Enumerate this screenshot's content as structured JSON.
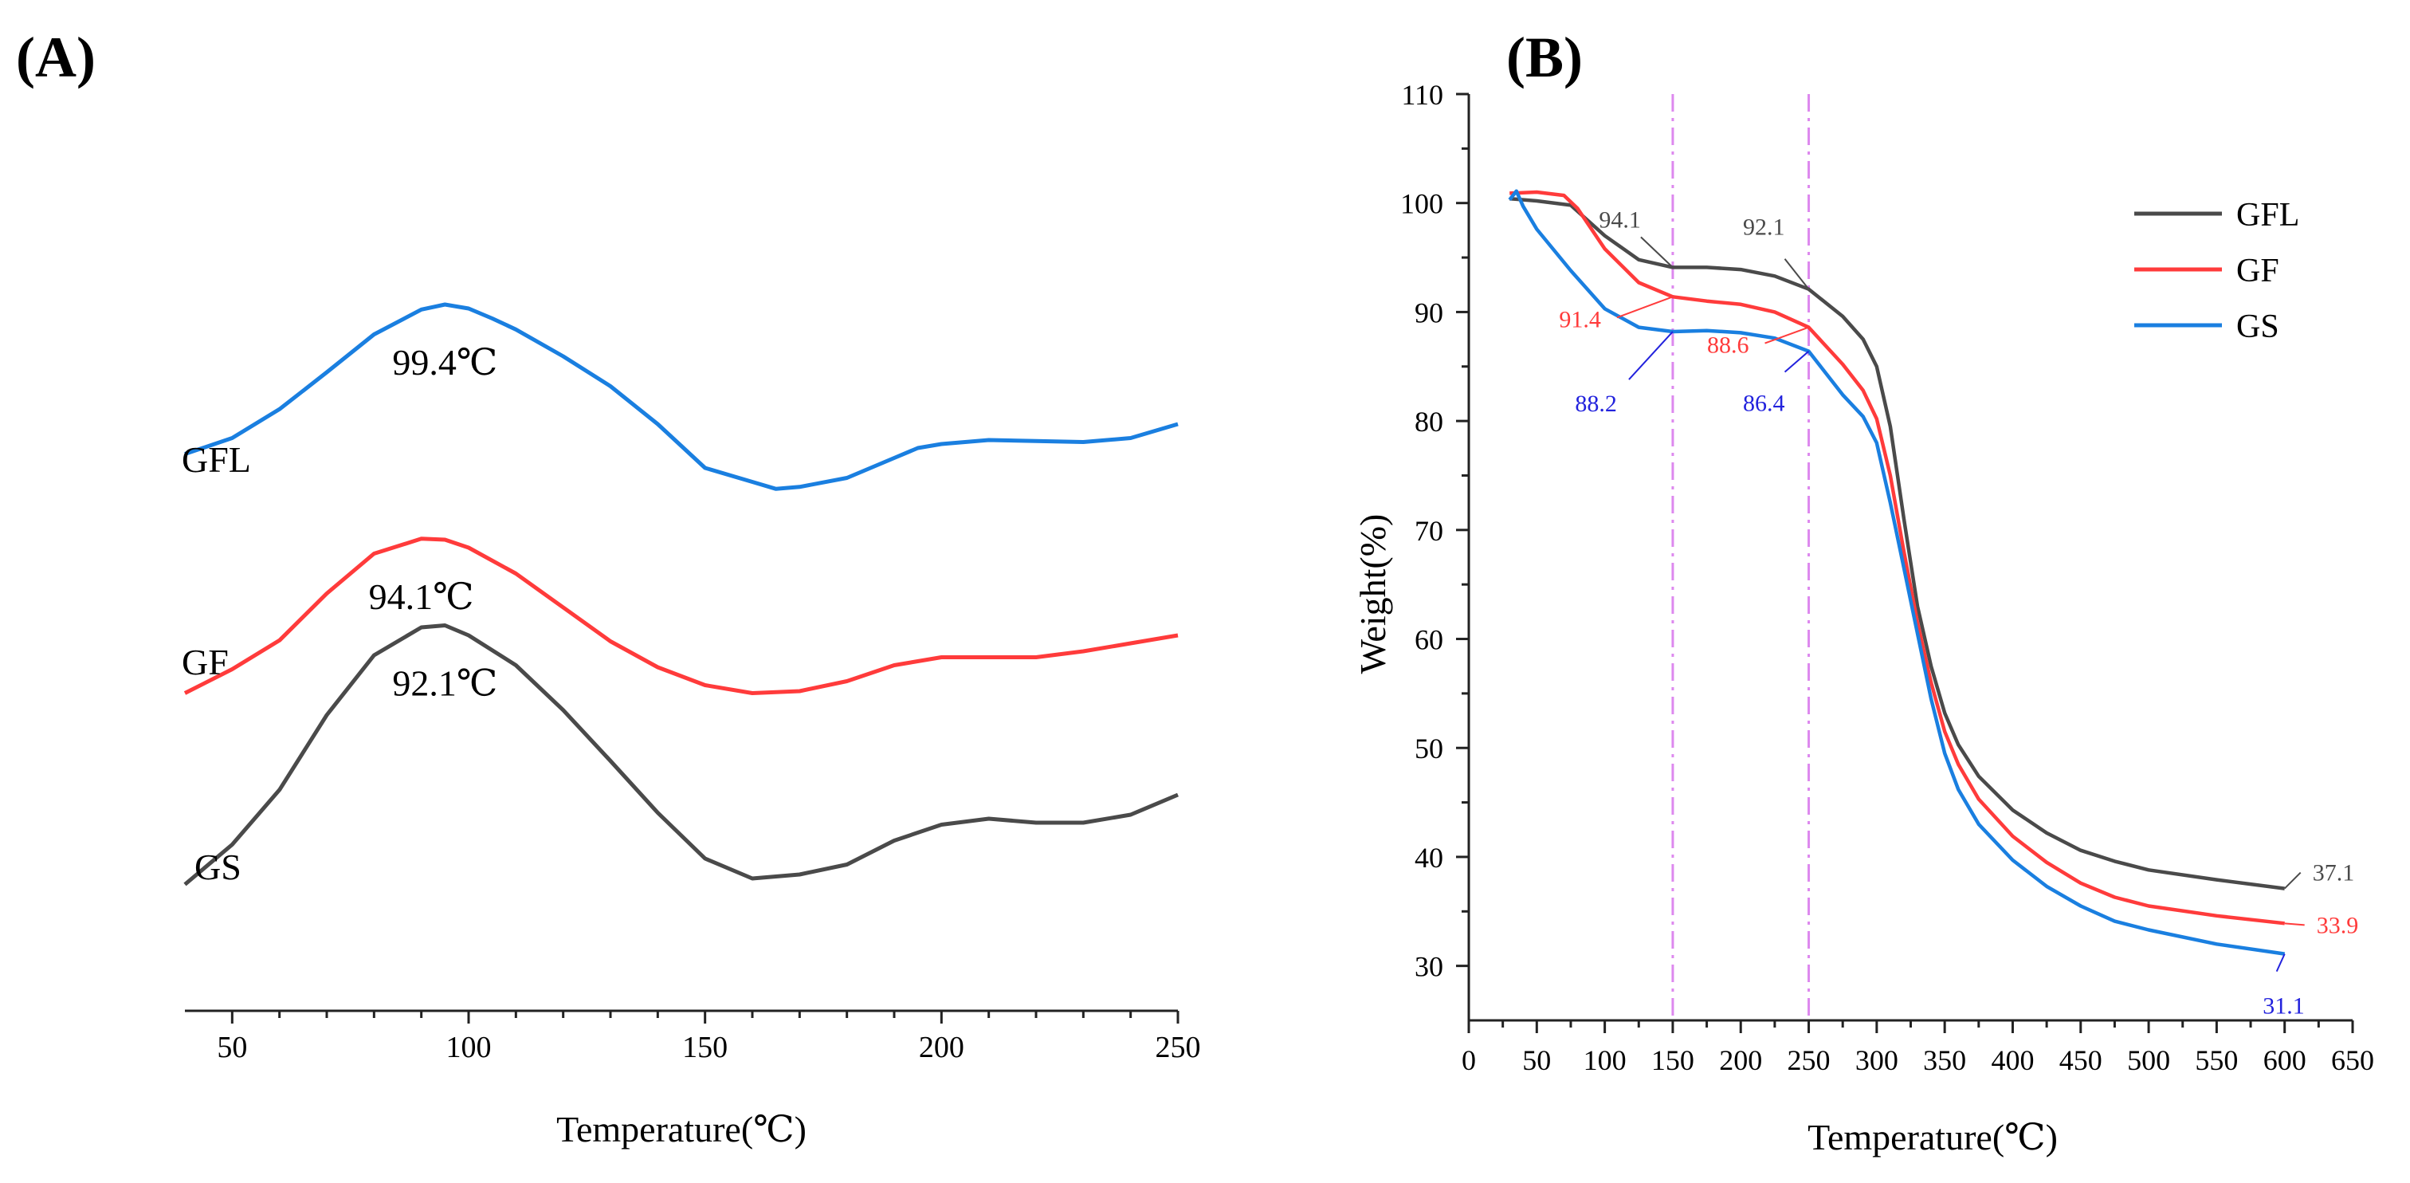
{
  "colors": {
    "GFL": "#4a4a4a",
    "GF": "#ff3b3b",
    "GS": "#1a7fe0",
    "guide": "#dd88ee",
    "axis": "#222222",
    "note_blue": "#2222dd"
  },
  "chart_data": [
    {
      "type": "line",
      "panel_label": "(A)",
      "xlabel": "Temperature(℃)",
      "ylabel": "",
      "xlim": [
        40,
        250
      ],
      "xticks": [
        50,
        100,
        150,
        200,
        250
      ],
      "xtick_labels": [
        "50",
        "100",
        "150",
        "200",
        "250"
      ],
      "y_axis_shown": false,
      "series": [
        {
          "name": "GFL",
          "label": "GFL",
          "color_key": "GS",
          "x": [
            40,
            50,
            60,
            70,
            80,
            90,
            95,
            100,
            105,
            110,
            120,
            130,
            140,
            150,
            160,
            165,
            170,
            180,
            190,
            195,
            200,
            210,
            220,
            230,
            240,
            250
          ],
          "y": [
            9.0,
            10.6,
            13.5,
            17.2,
            21.0,
            23.5,
            24.0,
            23.6,
            22.6,
            21.5,
            18.8,
            15.8,
            12.0,
            7.6,
            6.2,
            5.5,
            5.7,
            6.6,
            8.6,
            9.6,
            10.0,
            10.4,
            10.3,
            10.2,
            10.6,
            12.0
          ],
          "peak_label": "99.4℃"
        },
        {
          "name": "GF",
          "label": "GF",
          "color_key": "GF",
          "x": [
            40,
            50,
            60,
            70,
            80,
            90,
            95,
            100,
            110,
            120,
            130,
            140,
            150,
            160,
            170,
            180,
            190,
            200,
            210,
            220,
            230,
            240,
            250
          ],
          "y": [
            5.0,
            7.4,
            10.3,
            15.0,
            19.0,
            20.5,
            20.4,
            19.6,
            17.0,
            13.6,
            10.2,
            7.6,
            5.8,
            5.0,
            5.2,
            6.2,
            7.8,
            8.6,
            8.6,
            8.6,
            9.2,
            10.0,
            10.8
          ],
          "peak_label": "94.1℃"
        },
        {
          "name": "GS",
          "label": "GS",
          "color_key": "GFL",
          "x": [
            40,
            50,
            60,
            70,
            80,
            90,
            95,
            100,
            110,
            120,
            130,
            140,
            150,
            160,
            170,
            180,
            190,
            200,
            210,
            220,
            230,
            240,
            250
          ],
          "y": [
            5.0,
            9.0,
            14.5,
            22.0,
            28.0,
            30.8,
            31.0,
            30.0,
            27.0,
            22.5,
            17.4,
            12.2,
            7.6,
            5.6,
            6.0,
            7.0,
            9.4,
            11.0,
            11.6,
            11.2,
            11.2,
            12.0,
            14.0
          ],
          "peak_label": "92.1℃"
        }
      ]
    },
    {
      "type": "line",
      "panel_label": "(B)",
      "xlabel": "Temperature(℃)",
      "ylabel": "Weight(%)",
      "xlim": [
        0,
        650
      ],
      "ylim": [
        25,
        110
      ],
      "xticks": [
        0,
        50,
        100,
        150,
        200,
        250,
        300,
        350,
        400,
        450,
        500,
        550,
        600,
        650
      ],
      "xtick_labels": [
        "0",
        "50",
        "100",
        "150",
        "200",
        "250",
        "300",
        "350",
        "400",
        "450",
        "500",
        "550",
        "600",
        "650"
      ],
      "yticks": [
        30,
        40,
        50,
        60,
        70,
        80,
        90,
        100,
        110
      ],
      "ytick_labels": [
        "30",
        "40",
        "50",
        "60",
        "70",
        "80",
        "90",
        "100",
        "110"
      ],
      "vlines": [
        150,
        250
      ],
      "legend": {
        "position": "top-right",
        "entries": [
          "GFL",
          "GF",
          "GS"
        ]
      },
      "series": [
        {
          "name": "GFL",
          "color_key": "GFL",
          "x": [
            30,
            50,
            75,
            100,
            125,
            150,
            175,
            200,
            225,
            250,
            275,
            290,
            300,
            310,
            320,
            330,
            340,
            350,
            360,
            375,
            400,
            425,
            450,
            475,
            500,
            550,
            600
          ],
          "y": [
            100.4,
            100.2,
            99.8,
            97.0,
            94.8,
            94.1,
            94.1,
            93.9,
            93.3,
            92.1,
            89.6,
            87.5,
            85.0,
            79.5,
            71.0,
            63.0,
            57.5,
            53.2,
            50.3,
            47.4,
            44.3,
            42.2,
            40.6,
            39.6,
            38.8,
            37.9,
            37.1
          ]
        },
        {
          "name": "GF",
          "color_key": "GF",
          "x": [
            30,
            50,
            70,
            80,
            100,
            125,
            150,
            175,
            200,
            225,
            250,
            275,
            290,
            300,
            310,
            320,
            330,
            340,
            350,
            360,
            375,
            400,
            425,
            450,
            475,
            500,
            550,
            600
          ],
          "y": [
            100.9,
            101.0,
            100.7,
            99.5,
            95.8,
            92.7,
            91.4,
            91.0,
            90.7,
            90.0,
            88.6,
            85.2,
            82.8,
            80.2,
            75.0,
            68.0,
            61.5,
            56.0,
            51.5,
            48.5,
            45.3,
            41.9,
            39.5,
            37.6,
            36.3,
            35.5,
            34.6,
            33.9
          ]
        },
        {
          "name": "GS",
          "color_key": "GS",
          "x": [
            30,
            35,
            40,
            50,
            75,
            100,
            125,
            150,
            175,
            200,
            225,
            250,
            275,
            290,
            300,
            310,
            320,
            330,
            340,
            350,
            360,
            375,
            400,
            425,
            450,
            475,
            500,
            550,
            600
          ],
          "y": [
            100.3,
            101.1,
            99.7,
            97.6,
            93.8,
            90.3,
            88.6,
            88.2,
            88.3,
            88.1,
            87.6,
            86.4,
            82.4,
            80.4,
            78.0,
            72.5,
            66.5,
            60.5,
            54.5,
            49.5,
            46.2,
            43.0,
            39.7,
            37.3,
            35.5,
            34.1,
            33.3,
            32.0,
            31.1
          ]
        }
      ],
      "annotations": [
        {
          "text": "94.1",
          "x": 150,
          "y": 94.1,
          "color_key": "GFL"
        },
        {
          "text": "92.1",
          "x": 250,
          "y": 92.1,
          "color_key": "GFL"
        },
        {
          "text": "91.4",
          "x": 150,
          "y": 91.4,
          "color_key": "GF"
        },
        {
          "text": "88.6",
          "x": 250,
          "y": 88.6,
          "color_key": "GF"
        },
        {
          "text": "88.2",
          "x": 150,
          "y": 88.2,
          "color_key": "note_blue"
        },
        {
          "text": "86.4",
          "x": 250,
          "y": 86.4,
          "color_key": "note_blue"
        },
        {
          "text": "37.1",
          "x": 600,
          "y": 37.1,
          "color_key": "GFL"
        },
        {
          "text": "33.9",
          "x": 600,
          "y": 33.9,
          "color_key": "GF"
        },
        {
          "text": "31.1",
          "x": 600,
          "y": 31.1,
          "color_key": "note_blue"
        }
      ]
    }
  ]
}
